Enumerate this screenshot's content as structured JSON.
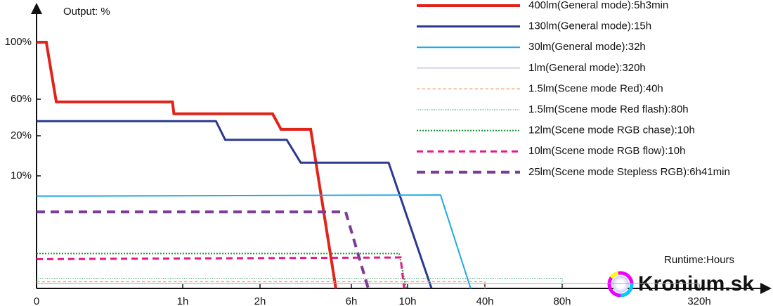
{
  "chart_data": {
    "type": "line",
    "y_label": "Output: %",
    "x_label": "Runtime:Hours",
    "watermark": "Kronium.sk",
    "xlim": [
      0,
      320
    ],
    "xticks": [
      0,
      {
        "value": 1,
        "label": "1h"
      },
      {
        "value": 2,
        "label": "2h"
      },
      {
        "value": 6,
        "label": "6h"
      },
      {
        "value": 10,
        "label": "10h"
      },
      {
        "value": 40,
        "label": "40h"
      },
      {
        "value": 80,
        "label": "80h"
      },
      {
        "value": 320,
        "label": "320h"
      }
    ],
    "ylim": [
      0,
      100
    ],
    "yticks": [
      {
        "value": 10,
        "label": "10%"
      },
      {
        "value": 20,
        "label": "20%"
      },
      {
        "value": 60,
        "label": "60%"
      },
      {
        "value": 100,
        "label": "100%"
      }
    ],
    "series": [
      {
        "name": "400lm(General mode):5h3min",
        "color": "#e2231a",
        "style": "solid",
        "width": 4,
        "x": [
          0,
          0.067,
          0.135,
          0.93,
          0.94,
          2.55,
          2.92,
          4.22,
          5.32
        ],
        "values": [
          100,
          100,
          57,
          57,
          44,
          44,
          27,
          27,
          0
        ]
      },
      {
        "name": "130lm(General mode):15h",
        "color": "#2b3990",
        "style": "solid",
        "width": 3,
        "x": [
          0,
          1.43,
          1.55,
          3.17,
          3.78,
          8.65,
          19.3
        ],
        "values": [
          36,
          36,
          19,
          19,
          13.3,
          13.3,
          0
        ]
      },
      {
        "name": "30lm(General mode):32h",
        "color": "#1fa9e1",
        "style": "solid",
        "width": 2,
        "x": [
          0,
          22.8,
          34.5
        ],
        "values": [
          8.2,
          8.3,
          0
        ]
      },
      {
        "name": "1lm(General mode):320h",
        "color": "#b39ac8",
        "style": "solid",
        "width": 1,
        "x": [
          0,
          320,
          320
        ],
        "values": [
          0.44,
          0.44,
          0
        ]
      },
      {
        "name": "1.5lm(Scene mode Red):40h",
        "color": "#f4a582",
        "style": "dashed",
        "width": 1.5,
        "x": [
          0,
          40,
          40
        ],
        "values": [
          0.6,
          0.6,
          0
        ]
      },
      {
        "name": "1.5lm(Scene mode Red flash):80h",
        "color": "#1b8a4a",
        "style": "finedot",
        "width": 1,
        "x": [
          0,
          80,
          80
        ],
        "values": [
          0.9,
          0.9,
          0
        ]
      },
      {
        "name": "12lm(Scene mode RGB chase):10h",
        "color": "#1a9a3a",
        "style": "dotted",
        "width": 2,
        "x": [
          0,
          9.4,
          9.9
        ],
        "values": [
          3.1,
          3.1,
          0
        ]
      },
      {
        "name": "10lm(Scene mode RGB flow):10h",
        "color": "#e6198a",
        "style": "dashed",
        "width": 3,
        "x": [
          0,
          9.5,
          9.75
        ],
        "values": [
          2.6,
          2.75,
          0
        ]
      },
      {
        "name": "25lm(Scene mode Stepless RGB):6h41min",
        "color": "#7d3c98",
        "style": "dashed",
        "width": 4,
        "x": [
          0,
          5.75,
          7.2
        ],
        "values": [
          6.8,
          6.8,
          0
        ]
      }
    ]
  }
}
